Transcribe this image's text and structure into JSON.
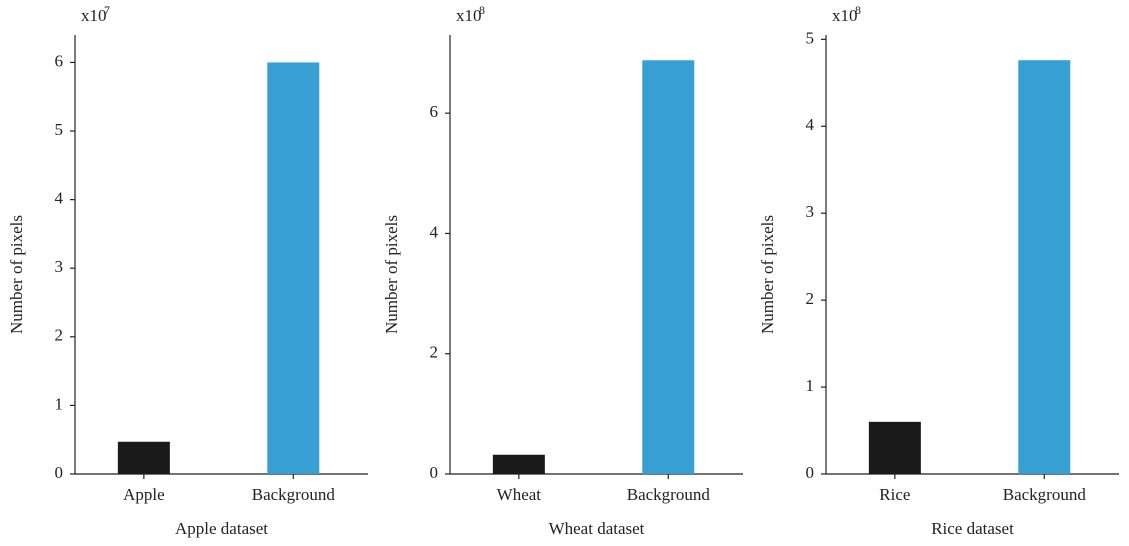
{
  "chart_data": [
    {
      "type": "bar",
      "ylabel": "Number of pixels",
      "xlabel": "Apple dataset",
      "multiplier": "x10",
      "multiplier_exponent": "7",
      "categories": [
        "Apple",
        "Background"
      ],
      "values": [
        0.47,
        6.0
      ],
      "colors": [
        "#1a1a1a",
        "#379fd1"
      ],
      "ylim": [
        0,
        6.4
      ],
      "yticks": [
        0,
        1,
        2,
        3,
        4,
        5,
        6
      ]
    },
    {
      "type": "bar",
      "ylabel": "Number of pixels",
      "xlabel": "Wheat dataset",
      "multiplier": "x10",
      "multiplier_exponent": "8",
      "categories": [
        "Wheat",
        "Background"
      ],
      "values": [
        0.32,
        6.88
      ],
      "colors": [
        "#1a1a1a",
        "#379fd1"
      ],
      "ylim": [
        0,
        7.3
      ],
      "yticks": [
        0,
        2,
        4,
        6
      ]
    },
    {
      "type": "bar",
      "ylabel": "Number of pixels",
      "xlabel": "Rice dataset",
      "multiplier": "x10",
      "multiplier_exponent": "8",
      "categories": [
        "Rice",
        "Background"
      ],
      "values": [
        0.6,
        4.76
      ],
      "colors": [
        "#1a1a1a",
        "#379fd1"
      ],
      "ylim": [
        0,
        5.05
      ],
      "yticks": [
        0,
        1,
        2,
        3,
        4,
        5
      ]
    }
  ]
}
